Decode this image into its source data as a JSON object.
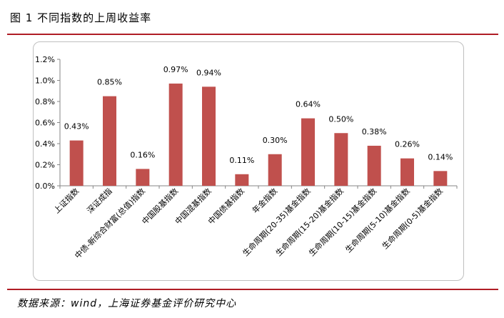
{
  "header": {
    "title": "图 1  不同指数的上周收益率"
  },
  "footer": {
    "source": "数据来源：wind，上海证券基金评价研究中心"
  },
  "chart_data": {
    "type": "bar",
    "title": "",
    "xlabel": "",
    "ylabel": "",
    "ylim": [
      0,
      1.2
    ],
    "y_unit": "%",
    "y_ticks": [
      "0.0%",
      "0.2%",
      "0.4%",
      "0.6%",
      "0.8%",
      "1.0%",
      "1.2%"
    ],
    "categories": [
      "上证指数",
      "深证成指",
      "中债-新综合财富(总值)指数",
      "中国股基指数",
      "中国混基指数",
      "中国债基指数",
      "年金指数",
      "生命周期(20-35)基金指数",
      "生命周期(15-20)基金指数",
      "生命周期(10-15)基金指数",
      "生命周期(5-10)基金指数",
      "生命周期(0-5)基金指数"
    ],
    "values": [
      0.43,
      0.85,
      0.16,
      0.97,
      0.94,
      0.11,
      0.3,
      0.64,
      0.5,
      0.38,
      0.26,
      0.14
    ],
    "data_labels": [
      "0.43%",
      "0.85%",
      "0.16%",
      "0.97%",
      "0.94%",
      "0.11%",
      "0.30%",
      "0.64%",
      "0.50%",
      "0.38%",
      "0.26%",
      "0.14%"
    ],
    "grid": false,
    "legend": "none",
    "colors": {
      "bar": "#c0504d",
      "axis": "#868686"
    }
  }
}
